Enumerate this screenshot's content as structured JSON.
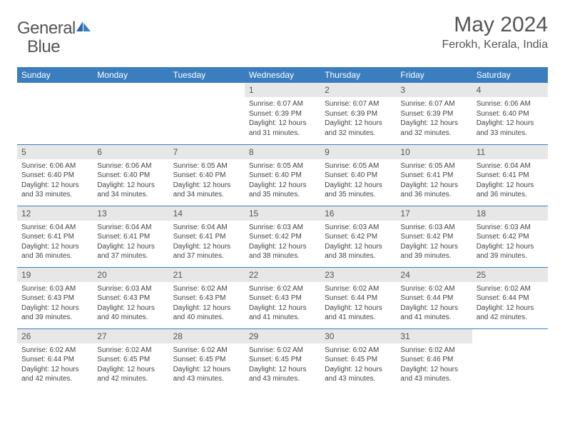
{
  "brand": {
    "word1": "General",
    "word2": "Blue"
  },
  "title": "May 2024",
  "location": "Ferokh, Kerala, India",
  "colors": {
    "header_bg": "#3a7ebf",
    "header_text": "#ffffff",
    "daynum_bg": "#e7e7e8",
    "body_text": "#444444",
    "title_text": "#555555",
    "row_border": "#3a7ebf"
  },
  "weekdays": [
    "Sunday",
    "Monday",
    "Tuesday",
    "Wednesday",
    "Thursday",
    "Friday",
    "Saturday"
  ],
  "weeks": [
    [
      null,
      null,
      null,
      {
        "n": "1",
        "sr": "Sunrise: 6:07 AM",
        "ss": "Sunset: 6:39 PM",
        "d1": "Daylight: 12 hours",
        "d2": "and 31 minutes."
      },
      {
        "n": "2",
        "sr": "Sunrise: 6:07 AM",
        "ss": "Sunset: 6:39 PM",
        "d1": "Daylight: 12 hours",
        "d2": "and 32 minutes."
      },
      {
        "n": "3",
        "sr": "Sunrise: 6:07 AM",
        "ss": "Sunset: 6:39 PM",
        "d1": "Daylight: 12 hours",
        "d2": "and 32 minutes."
      },
      {
        "n": "4",
        "sr": "Sunrise: 6:06 AM",
        "ss": "Sunset: 6:40 PM",
        "d1": "Daylight: 12 hours",
        "d2": "and 33 minutes."
      }
    ],
    [
      {
        "n": "5",
        "sr": "Sunrise: 6:06 AM",
        "ss": "Sunset: 6:40 PM",
        "d1": "Daylight: 12 hours",
        "d2": "and 33 minutes."
      },
      {
        "n": "6",
        "sr": "Sunrise: 6:06 AM",
        "ss": "Sunset: 6:40 PM",
        "d1": "Daylight: 12 hours",
        "d2": "and 34 minutes."
      },
      {
        "n": "7",
        "sr": "Sunrise: 6:05 AM",
        "ss": "Sunset: 6:40 PM",
        "d1": "Daylight: 12 hours",
        "d2": "and 34 minutes."
      },
      {
        "n": "8",
        "sr": "Sunrise: 6:05 AM",
        "ss": "Sunset: 6:40 PM",
        "d1": "Daylight: 12 hours",
        "d2": "and 35 minutes."
      },
      {
        "n": "9",
        "sr": "Sunrise: 6:05 AM",
        "ss": "Sunset: 6:40 PM",
        "d1": "Daylight: 12 hours",
        "d2": "and 35 minutes."
      },
      {
        "n": "10",
        "sr": "Sunrise: 6:05 AM",
        "ss": "Sunset: 6:41 PM",
        "d1": "Daylight: 12 hours",
        "d2": "and 36 minutes."
      },
      {
        "n": "11",
        "sr": "Sunrise: 6:04 AM",
        "ss": "Sunset: 6:41 PM",
        "d1": "Daylight: 12 hours",
        "d2": "and 36 minutes."
      }
    ],
    [
      {
        "n": "12",
        "sr": "Sunrise: 6:04 AM",
        "ss": "Sunset: 6:41 PM",
        "d1": "Daylight: 12 hours",
        "d2": "and 36 minutes."
      },
      {
        "n": "13",
        "sr": "Sunrise: 6:04 AM",
        "ss": "Sunset: 6:41 PM",
        "d1": "Daylight: 12 hours",
        "d2": "and 37 minutes."
      },
      {
        "n": "14",
        "sr": "Sunrise: 6:04 AM",
        "ss": "Sunset: 6:41 PM",
        "d1": "Daylight: 12 hours",
        "d2": "and 37 minutes."
      },
      {
        "n": "15",
        "sr": "Sunrise: 6:03 AM",
        "ss": "Sunset: 6:42 PM",
        "d1": "Daylight: 12 hours",
        "d2": "and 38 minutes."
      },
      {
        "n": "16",
        "sr": "Sunrise: 6:03 AM",
        "ss": "Sunset: 6:42 PM",
        "d1": "Daylight: 12 hours",
        "d2": "and 38 minutes."
      },
      {
        "n": "17",
        "sr": "Sunrise: 6:03 AM",
        "ss": "Sunset: 6:42 PM",
        "d1": "Daylight: 12 hours",
        "d2": "and 39 minutes."
      },
      {
        "n": "18",
        "sr": "Sunrise: 6:03 AM",
        "ss": "Sunset: 6:42 PM",
        "d1": "Daylight: 12 hours",
        "d2": "and 39 minutes."
      }
    ],
    [
      {
        "n": "19",
        "sr": "Sunrise: 6:03 AM",
        "ss": "Sunset: 6:43 PM",
        "d1": "Daylight: 12 hours",
        "d2": "and 39 minutes."
      },
      {
        "n": "20",
        "sr": "Sunrise: 6:03 AM",
        "ss": "Sunset: 6:43 PM",
        "d1": "Daylight: 12 hours",
        "d2": "and 40 minutes."
      },
      {
        "n": "21",
        "sr": "Sunrise: 6:02 AM",
        "ss": "Sunset: 6:43 PM",
        "d1": "Daylight: 12 hours",
        "d2": "and 40 minutes."
      },
      {
        "n": "22",
        "sr": "Sunrise: 6:02 AM",
        "ss": "Sunset: 6:43 PM",
        "d1": "Daylight: 12 hours",
        "d2": "and 41 minutes."
      },
      {
        "n": "23",
        "sr": "Sunrise: 6:02 AM",
        "ss": "Sunset: 6:44 PM",
        "d1": "Daylight: 12 hours",
        "d2": "and 41 minutes."
      },
      {
        "n": "24",
        "sr": "Sunrise: 6:02 AM",
        "ss": "Sunset: 6:44 PM",
        "d1": "Daylight: 12 hours",
        "d2": "and 41 minutes."
      },
      {
        "n": "25",
        "sr": "Sunrise: 6:02 AM",
        "ss": "Sunset: 6:44 PM",
        "d1": "Daylight: 12 hours",
        "d2": "and 42 minutes."
      }
    ],
    [
      {
        "n": "26",
        "sr": "Sunrise: 6:02 AM",
        "ss": "Sunset: 6:44 PM",
        "d1": "Daylight: 12 hours",
        "d2": "and 42 minutes."
      },
      {
        "n": "27",
        "sr": "Sunrise: 6:02 AM",
        "ss": "Sunset: 6:45 PM",
        "d1": "Daylight: 12 hours",
        "d2": "and 42 minutes."
      },
      {
        "n": "28",
        "sr": "Sunrise: 6:02 AM",
        "ss": "Sunset: 6:45 PM",
        "d1": "Daylight: 12 hours",
        "d2": "and 43 minutes."
      },
      {
        "n": "29",
        "sr": "Sunrise: 6:02 AM",
        "ss": "Sunset: 6:45 PM",
        "d1": "Daylight: 12 hours",
        "d2": "and 43 minutes."
      },
      {
        "n": "30",
        "sr": "Sunrise: 6:02 AM",
        "ss": "Sunset: 6:45 PM",
        "d1": "Daylight: 12 hours",
        "d2": "and 43 minutes."
      },
      {
        "n": "31",
        "sr": "Sunrise: 6:02 AM",
        "ss": "Sunset: 6:46 PM",
        "d1": "Daylight: 12 hours",
        "d2": "and 43 minutes."
      },
      null
    ]
  ]
}
